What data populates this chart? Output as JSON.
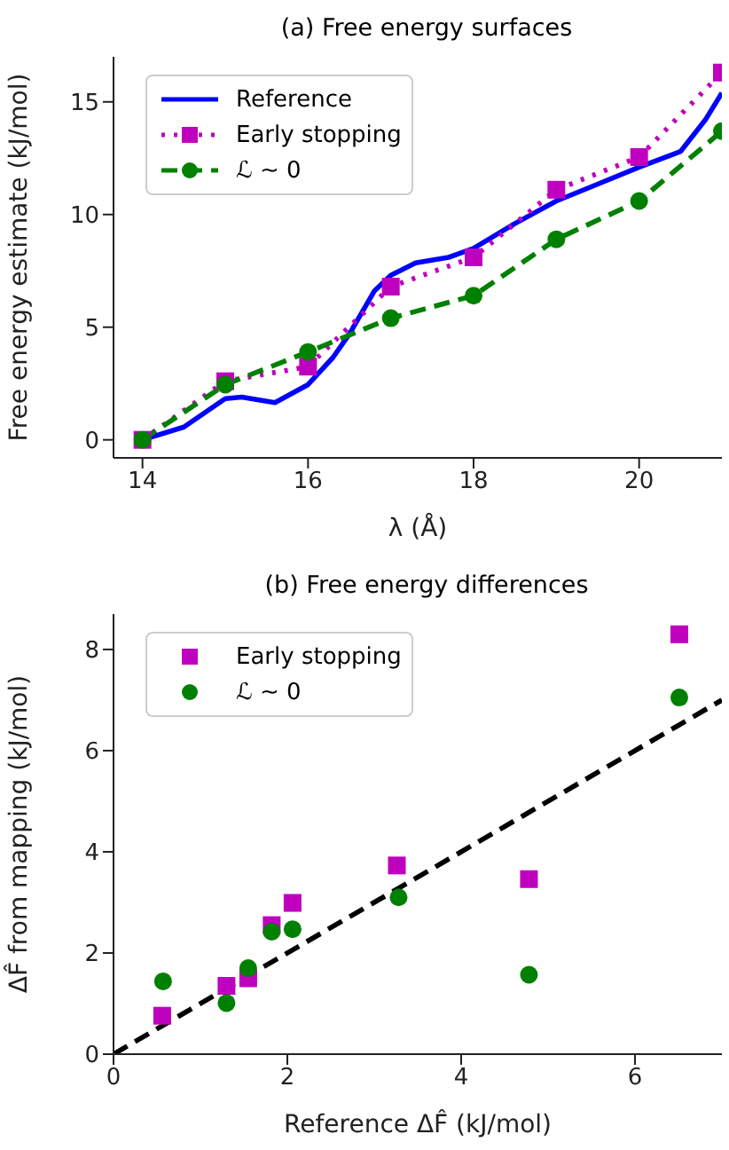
{
  "chart_data": [
    {
      "type": "line",
      "title": "(a) Free energy surfaces",
      "xlabel": "λ (Å)",
      "ylabel": "Free energy estimate (kJ/mol)",
      "xlim": [
        13.65,
        21
      ],
      "xticks": [
        14,
        16,
        18,
        20
      ],
      "ylim": [
        -0.8,
        17
      ],
      "yticks": [
        0,
        5,
        10,
        15
      ],
      "grid": false,
      "legend": "top left",
      "series": [
        {
          "name": "Reference",
          "color": "#0000ff",
          "marker": "none",
          "line_style": "solid",
          "x": [
            14,
            14.5,
            15,
            15.2,
            15.6,
            16,
            16.3,
            16.5,
            16.8,
            17,
            17.3,
            17.7,
            18,
            18.5,
            19,
            19.5,
            20,
            20.5,
            20.8,
            21
          ],
          "values": [
            0,
            0.57,
            1.83,
            1.9,
            1.65,
            2.45,
            3.65,
            4.7,
            6.6,
            7.3,
            7.85,
            8.1,
            8.5,
            9.6,
            10.6,
            11.35,
            12.1,
            12.8,
            14.2,
            15.4
          ]
        },
        {
          "name": "Early stopping",
          "color": "#bf00bf",
          "marker": "square",
          "line_style": "dotted",
          "x": [
            14,
            15,
            16,
            17,
            18,
            19,
            20,
            21
          ],
          "values": [
            0,
            2.6,
            3.25,
            6.8,
            8.1,
            11.1,
            12.55,
            16.3
          ]
        },
        {
          "name": "ℒ ∼ 0",
          "color": "#008000",
          "marker": "circle",
          "line_style": "dashed",
          "x": [
            14,
            15,
            16,
            17,
            18,
            19,
            20,
            21
          ],
          "values": [
            0,
            2.45,
            3.9,
            5.4,
            6.4,
            8.9,
            10.6,
            13.7
          ]
        }
      ]
    },
    {
      "type": "scatter",
      "title": "(b) Free energy differences",
      "xlabel": "Reference ΔF̂ (kJ/mol)",
      "ylabel": "ΔF̂ from mapping (kJ/mol)",
      "xlim": [
        0,
        7
      ],
      "xticks": [
        0,
        2,
        4,
        6
      ],
      "ylim": [
        0,
        8.7
      ],
      "yticks": [
        0,
        2,
        4,
        6,
        8
      ],
      "grid": false,
      "legend": "top left",
      "series": [
        {
          "name": "Early stopping",
          "color": "#bf00bf",
          "marker": "square",
          "x": [
            0.56,
            1.3,
            1.55,
            1.82,
            2.06,
            3.26,
            4.78,
            6.51
          ],
          "values": [
            0.76,
            1.35,
            1.5,
            2.55,
            2.99,
            3.73,
            3.46,
            8.3
          ]
        },
        {
          "name": "ℒ ∼ 0",
          "color": "#008000",
          "marker": "circle",
          "x": [
            0.57,
            1.3,
            1.55,
            1.82,
            2.06,
            3.28,
            4.78,
            6.51
          ],
          "values": [
            1.44,
            1.01,
            1.7,
            2.42,
            2.47,
            3.1,
            1.57,
            7.05
          ]
        },
        {
          "type": "line",
          "color": "#000000",
          "marker": "none",
          "line_style": "dashed",
          "x": [
            0,
            7
          ],
          "values": [
            0,
            7
          ]
        }
      ]
    }
  ]
}
